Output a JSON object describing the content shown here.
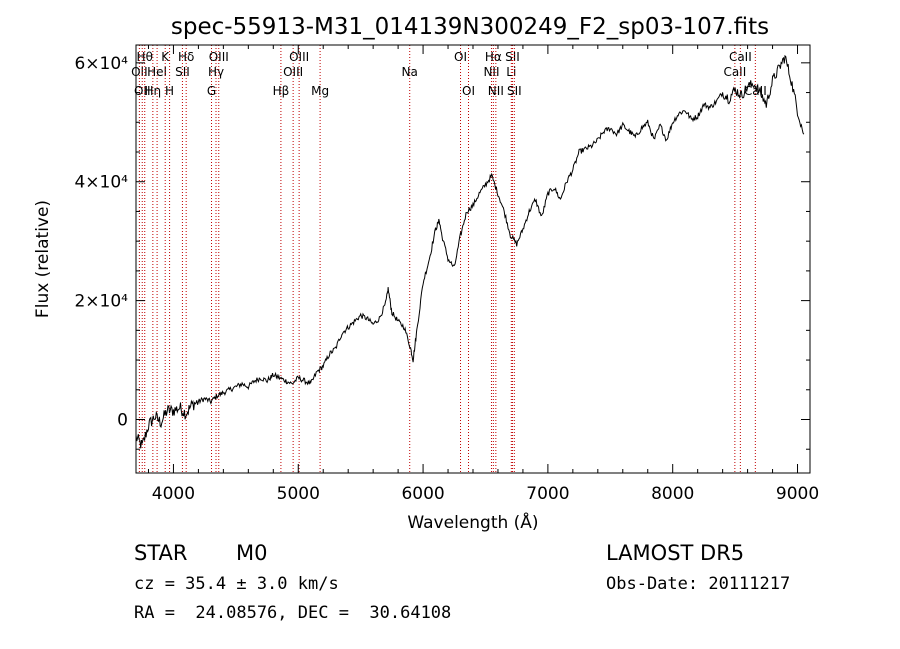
{
  "chart_data": {
    "type": "line",
    "title": "spec-55913-M31_014139N300249_F2_sp03-107.fits",
    "xlabel": "Wavelength (Å)",
    "ylabel": "Flux (relative)",
    "xlim": [
      3700,
      9100
    ],
    "ylim": [
      -9000,
      63000
    ],
    "x_ticks": [
      4000,
      5000,
      6000,
      7000,
      8000,
      9000
    ],
    "y_ticks": [
      {
        "value": 0,
        "label": "0"
      },
      {
        "value": 20000,
        "label": "2×10⁴"
      },
      {
        "value": 40000,
        "label": "4×10⁴"
      },
      {
        "value": 60000,
        "label": "6×10⁴"
      }
    ],
    "grid": false,
    "series": [
      {
        "color": "#000000",
        "x": [
          3700,
          3750,
          3800,
          3850,
          3900,
          3950,
          4000,
          4050,
          4100,
          4150,
          4200,
          4250,
          4300,
          4350,
          4400,
          4450,
          4500,
          4550,
          4600,
          4650,
          4700,
          4750,
          4800,
          4850,
          4900,
          4950,
          5000,
          5050,
          5100,
          5150,
          5200,
          5250,
          5300,
          5350,
          5400,
          5450,
          5500,
          5550,
          5600,
          5650,
          5700,
          5720,
          5750,
          5800,
          5850,
          5900,
          5920,
          5950,
          6000,
          6050,
          6100,
          6130,
          6150,
          6200,
          6250,
          6300,
          6350,
          6400,
          6450,
          6500,
          6550,
          6600,
          6650,
          6700,
          6750,
          6800,
          6850,
          6900,
          6950,
          7000,
          7050,
          7100,
          7150,
          7200,
          7250,
          7300,
          7350,
          7400,
          7450,
          7500,
          7550,
          7600,
          7650,
          7700,
          7750,
          7800,
          7850,
          7900,
          7950,
          8000,
          8050,
          8100,
          8150,
          8200,
          8250,
          8300,
          8350,
          8400,
          8450,
          8500,
          8550,
          8600,
          8650,
          8700,
          8750,
          8800,
          8850,
          8900,
          8950,
          9000,
          9050
        ],
        "y": [
          -3000,
          -4500,
          -1000,
          500,
          -500,
          1500,
          1500,
          2000,
          1000,
          2500,
          3000,
          3500,
          3000,
          4000,
          4500,
          5000,
          5500,
          6000,
          5500,
          6500,
          7000,
          6500,
          7500,
          7000,
          6500,
          6000,
          7000,
          6500,
          6000,
          8000,
          9000,
          11000,
          12000,
          14500,
          15500,
          16500,
          17500,
          17000,
          16000,
          17000,
          19500,
          22000,
          18000,
          16500,
          15500,
          12000,
          10000,
          15000,
          23000,
          27000,
          32000,
          33500,
          31000,
          27000,
          25500,
          31000,
          35000,
          36000,
          38000,
          39500,
          41000,
          38000,
          35000,
          31000,
          29500,
          32000,
          35000,
          37000,
          34000,
          38000,
          39000,
          37000,
          40000,
          42000,
          45000,
          45500,
          46000,
          47000,
          48500,
          49000,
          48000,
          49500,
          48500,
          47500,
          49000,
          50000,
          47000,
          49500,
          47000,
          50000,
          51500,
          52000,
          50500,
          51000,
          53000,
          52500,
          53500,
          55000,
          54000,
          55500,
          54500,
          56000,
          56500,
          55000,
          53000,
          57000,
          59000,
          61000,
          57000,
          52000,
          48000
        ]
      }
    ],
    "spectral_lines": [
      {
        "wavelength": 3727,
        "label": "OII",
        "row": 2
      },
      {
        "wavelength": 3750,
        "label": "OII",
        "row": 3
      },
      {
        "wavelength": 3770,
        "label": "Hθ",
        "row": 1
      },
      {
        "wavelength": 3835,
        "label": "Hη",
        "row": 3
      },
      {
        "wavelength": 3869,
        "label": "HeI",
        "row": 2
      },
      {
        "wavelength": 3934,
        "label": "K",
        "row": 1
      },
      {
        "wavelength": 3969,
        "label": "H",
        "row": 3
      },
      {
        "wavelength": 4072,
        "label": "SII",
        "row": 2
      },
      {
        "wavelength": 4102,
        "label": "Hδ",
        "row": 1
      },
      {
        "wavelength": 4305,
        "label": "G",
        "row": 3
      },
      {
        "wavelength": 4341,
        "label": "Hγ",
        "row": 2
      },
      {
        "wavelength": 4363,
        "label": "OIII",
        "row": 1
      },
      {
        "wavelength": 4861,
        "label": "Hβ",
        "row": 3
      },
      {
        "wavelength": 4959,
        "label": "OIII",
        "row": 2
      },
      {
        "wavelength": 5007,
        "label": "OIII",
        "row": 1
      },
      {
        "wavelength": 5175,
        "label": "Mg",
        "row": 3
      },
      {
        "wavelength": 5893,
        "label": "Na",
        "row": 2
      },
      {
        "wavelength": 6300,
        "label": "OI",
        "row": 1
      },
      {
        "wavelength": 6364,
        "label": "OI",
        "row": 3
      },
      {
        "wavelength": 6548,
        "label": "NII",
        "row": 2
      },
      {
        "wavelength": 6563,
        "label": "Hα",
        "row": 1
      },
      {
        "wavelength": 6583,
        "label": "NII",
        "row": 3
      },
      {
        "wavelength": 6707,
        "label": "Li",
        "row": 2
      },
      {
        "wavelength": 6716,
        "label": "SII",
        "row": 1
      },
      {
        "wavelength": 6731,
        "label": "SII",
        "row": 3
      },
      {
        "wavelength": 8498,
        "label": "CaII",
        "row": 2
      },
      {
        "wavelength": 8542,
        "label": "CaII",
        "row": 1
      },
      {
        "wavelength": 8662,
        "label": "CaII",
        "row": 3
      }
    ],
    "line_color": "#c00000"
  },
  "info": {
    "class_label": "STAR",
    "subclass_label": "M0",
    "survey": "LAMOST DR5",
    "cz": "cz = 35.4 ± 3.0 km/s",
    "obs_date": "Obs-Date: 20111217",
    "coords": "RA =  24.08576, DEC =  30.64108"
  }
}
